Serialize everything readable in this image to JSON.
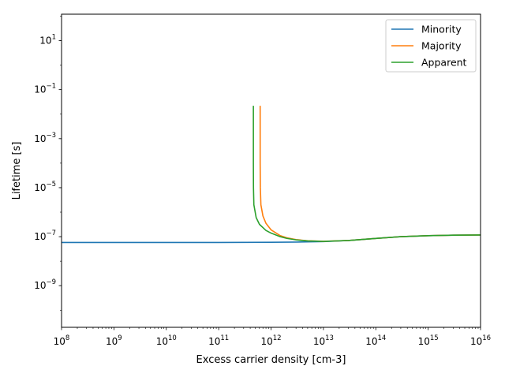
{
  "chart_data": {
    "type": "line",
    "title": "",
    "xlabel": "Excess carrier density [cm-3]",
    "ylabel": "Lifetime [s]",
    "xscale": "log",
    "yscale": "log",
    "xlim": [
      100000000.0,
      1e+16
    ],
    "ylim": [
      2e-11,
      120.0
    ],
    "grid": false,
    "legend_position": "top-right",
    "x_ticks": [
      {
        "value": 100000000.0,
        "base": "10",
        "exp": "8"
      },
      {
        "value": 1000000000.0,
        "base": "10",
        "exp": "9"
      },
      {
        "value": 10000000000.0,
        "base": "10",
        "exp": "10"
      },
      {
        "value": 100000000000.0,
        "base": "10",
        "exp": "11"
      },
      {
        "value": 1000000000000.0,
        "base": "10",
        "exp": "12"
      },
      {
        "value": 10000000000000.0,
        "base": "10",
        "exp": "13"
      },
      {
        "value": 100000000000000.0,
        "base": "10",
        "exp": "14"
      },
      {
        "value": 1000000000000000.0,
        "base": "10",
        "exp": "15"
      },
      {
        "value": 1e+16,
        "base": "10",
        "exp": "16"
      }
    ],
    "y_ticks": [
      {
        "value": 1e-09,
        "base": "10",
        "exp": "−9"
      },
      {
        "value": 1e-07,
        "base": "10",
        "exp": "−7"
      },
      {
        "value": 1e-05,
        "base": "10",
        "exp": "−5"
      },
      {
        "value": 0.001,
        "base": "10",
        "exp": "−3"
      },
      {
        "value": 0.1,
        "base": "10",
        "exp": "−1"
      },
      {
        "value": 10.0,
        "base": "10",
        "exp": "1"
      }
    ],
    "series": [
      {
        "name": "Minority",
        "color": "#1f77b4",
        "points": [
          [
            100000000.0,
            5.8e-08
          ],
          [
            1000000000.0,
            5.8e-08
          ],
          [
            10000000000.0,
            5.8e-08
          ],
          [
            100000000000.0,
            5.8e-08
          ],
          [
            1000000000000.0,
            5.9e-08
          ],
          [
            3000000000000.0,
            6e-08
          ],
          [
            10000000000000.0,
            6.3e-08
          ],
          [
            30000000000000.0,
            7e-08
          ],
          [
            100000000000000.0,
            8.5e-08
          ],
          [
            300000000000000.0,
            1e-07
          ],
          [
            1000000000000000.0,
            1.1e-07
          ],
          [
            3000000000000000.0,
            1.15e-07
          ],
          [
            1e+16,
            1.17e-07
          ]
        ]
      },
      {
        "name": "Majority",
        "color": "#ff7f0e",
        "points": [
          [
            620000000000.0,
            0.022
          ],
          [
            620000000000.0,
            0.0001
          ],
          [
            625000000000.0,
            1e-05
          ],
          [
            640000000000.0,
            2e-06
          ],
          [
            700000000000.0,
            7e-07
          ],
          [
            800000000000.0,
            3.5e-07
          ],
          [
            1000000000000.0,
            1.9e-07
          ],
          [
            1500000000000.0,
            1.1e-07
          ],
          [
            2000000000000.0,
            9e-08
          ],
          [
            3000000000000.0,
            7.6e-08
          ],
          [
            5000000000000.0,
            6.8e-08
          ],
          [
            10000000000000.0,
            6.5e-08
          ],
          [
            30000000000000.0,
            7e-08
          ],
          [
            100000000000000.0,
            8.5e-08
          ],
          [
            300000000000000.0,
            1e-07
          ],
          [
            1000000000000000.0,
            1.1e-07
          ],
          [
            3000000000000000.0,
            1.15e-07
          ],
          [
            1e+16,
            1.17e-07
          ]
        ]
      },
      {
        "name": "Apparent",
        "color": "#2ca02c",
        "points": [
          [
            460000000000.0,
            0.022
          ],
          [
            460000000000.0,
            0.0001
          ],
          [
            462000000000.0,
            1e-05
          ],
          [
            470000000000.0,
            2e-06
          ],
          [
            520000000000.0,
            6e-07
          ],
          [
            600000000000.0,
            3.2e-07
          ],
          [
            800000000000.0,
            1.8e-07
          ],
          [
            1000000000000.0,
            1.4e-07
          ],
          [
            1500000000000.0,
            1e-07
          ],
          [
            2000000000000.0,
            8.5e-08
          ],
          [
            3000000000000.0,
            7.4e-08
          ],
          [
            5000000000000.0,
            6.7e-08
          ],
          [
            10000000000000.0,
            6.4e-08
          ],
          [
            30000000000000.0,
            7e-08
          ],
          [
            100000000000000.0,
            8.5e-08
          ],
          [
            300000000000000.0,
            1e-07
          ],
          [
            1000000000000000.0,
            1.1e-07
          ],
          [
            3000000000000000.0,
            1.15e-07
          ],
          [
            1e+16,
            1.17e-07
          ]
        ]
      }
    ]
  }
}
